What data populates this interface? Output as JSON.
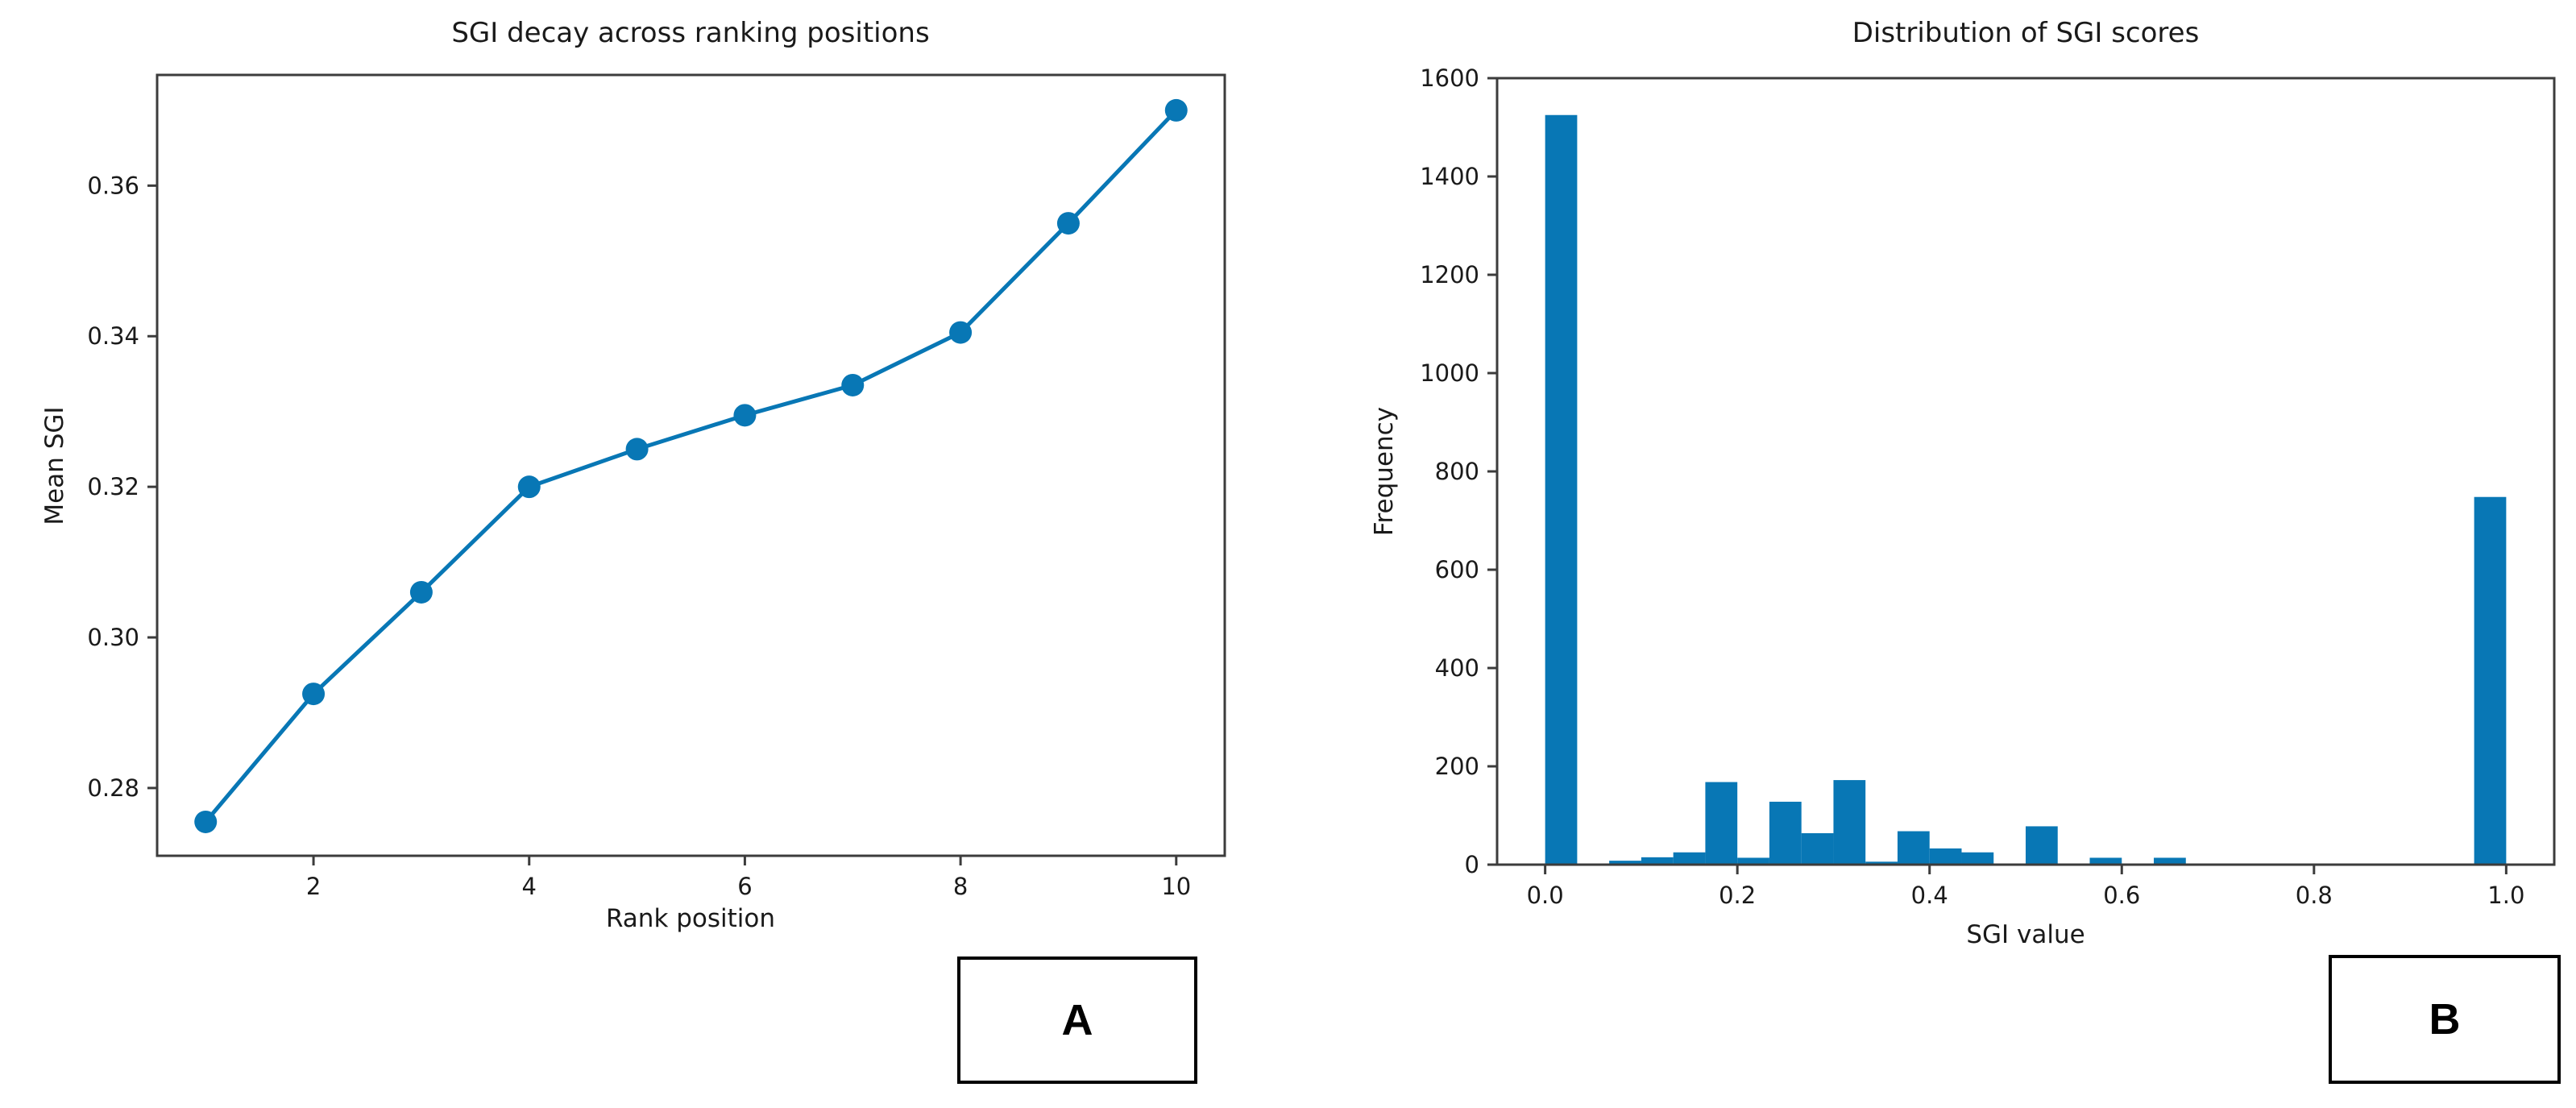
{
  "page": {
    "background": "#ffffff",
    "accent_blue": "#0877b5",
    "axis_color": "#3c3c3c",
    "text_color": "#1a1a1a"
  },
  "panels": [
    {
      "id": "A",
      "corner_label": "A",
      "title": "SGI decay across ranking positions",
      "xlabel": "Rank position",
      "ylabel": "Mean SGI"
    },
    {
      "id": "B",
      "corner_label": "B",
      "title": "Distribution of SGI scores",
      "xlabel": "SGI value",
      "ylabel": "Frequency"
    }
  ],
  "chart_data": [
    {
      "type": "line",
      "title": "SGI decay across ranking positions",
      "xlabel": "Rank position",
      "ylabel": "Mean SGI",
      "x": [
        1,
        2,
        3,
        4,
        5,
        6,
        7,
        8,
        9,
        10
      ],
      "y": [
        0.2755,
        0.2925,
        0.306,
        0.32,
        0.325,
        0.3295,
        0.3335,
        0.3405,
        0.355,
        0.37
      ],
      "xlim": [
        0.55,
        10.45
      ],
      "ylim": [
        0.271,
        0.3747
      ],
      "xticks": [
        2,
        4,
        6,
        8,
        10
      ],
      "xtick_labels": [
        "2",
        "4",
        "6",
        "8",
        "10"
      ],
      "yticks": [
        0.28,
        0.3,
        0.32,
        0.34,
        0.36
      ],
      "ytick_labels": [
        "0.28",
        "0.30",
        "0.32",
        "0.34",
        "0.36"
      ],
      "marker": "circle",
      "grid": false,
      "legend": "none",
      "color": "#0877b5"
    },
    {
      "type": "bar",
      "subtype": "histogram",
      "title": "Distribution of SGI scores",
      "xlabel": "SGI value",
      "ylabel": "Frequency",
      "bin_start": 0.0,
      "bin_width": 0.0333333,
      "frequencies": [
        1525,
        0,
        8,
        15,
        25,
        168,
        14,
        128,
        64,
        172,
        6,
        68,
        33,
        25,
        0,
        78,
        0,
        14,
        0,
        14,
        0,
        0,
        0,
        0,
        0,
        0,
        0,
        0,
        0,
        748
      ],
      "xlim": [
        -0.05,
        1.05
      ],
      "ylim": [
        0,
        1600
      ],
      "xticks": [
        0.0,
        0.2,
        0.4,
        0.6,
        0.8,
        1.0
      ],
      "xtick_labels": [
        "0.0",
        "0.2",
        "0.4",
        "0.6",
        "0.8",
        "1.0"
      ],
      "yticks": [
        0,
        200,
        400,
        600,
        800,
        1000,
        1200,
        1400,
        1600
      ],
      "ytick_labels": [
        "0",
        "200",
        "400",
        "600",
        "800",
        "1000",
        "1200",
        "1400",
        "1600"
      ],
      "grid": false,
      "legend": "none",
      "color": "#0877b5"
    }
  ]
}
